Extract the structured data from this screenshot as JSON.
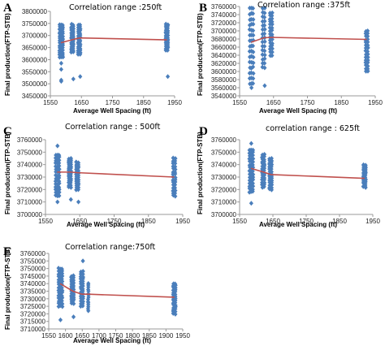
{
  "colors": {
    "points": "#4a7ebb",
    "trend": "#c0504d",
    "axis": "#999999"
  },
  "chart_data": [
    {
      "type": "scatter",
      "panel_label": "A",
      "title": "Correlation range :250ft",
      "xlabel": "Average Well Spacing (ft)",
      "ylabel": "Final production(FTP-STB)",
      "xlim": [
        1550,
        1950
      ],
      "ylim": [
        3450000,
        3800000
      ],
      "xticks": [
        "1550",
        "1650",
        "1750",
        "1850",
        "1950"
      ],
      "yticks": [
        "3450000",
        "3500000",
        "3550000",
        "3600000",
        "3650000",
        "3700000",
        "3750000",
        "3800000"
      ],
      "x_tick_values": [
        1550,
        1650,
        1750,
        1850,
        1950
      ],
      "y_tick_values": [
        3450000,
        3500000,
        3550000,
        3600000,
        3650000,
        3700000,
        3750000,
        3800000
      ],
      "scatter_groups": [
        {
          "x": [
            1580,
            1585,
            1590
          ],
          "y_range": [
            3610000,
            3745000
          ],
          "outliers": [
            3510000,
            3515000,
            3560000,
            3585000
          ]
        },
        {
          "x": [
            1618,
            1624
          ],
          "y_range": [
            3630000,
            3745000
          ],
          "outliers": [
            3520000
          ]
        },
        {
          "x": [
            1640,
            1646
          ],
          "y_range": [
            3620000,
            3745000
          ],
          "outliers": [
            3530000
          ]
        },
        {
          "x": [
            1922,
            1928
          ],
          "y_range": [
            3640000,
            3745000
          ],
          "outliers": [
            3530000
          ]
        }
      ],
      "trend_line": {
        "x": [
          1584,
          1622,
          1644,
          1925
        ],
        "y": [
          3670000,
          3683000,
          3690000,
          3682000
        ]
      }
    },
    {
      "type": "scatter",
      "panel_label": "B",
      "title": "Correlation range :375ft",
      "xlabel": "Average Well Spacing (ft)",
      "ylabel": "Final production(FTP-STB)",
      "xlim": [
        1550,
        1950
      ],
      "ylim": [
        3540000,
        3760000
      ],
      "xticks": [
        "1550",
        "1650",
        "1750",
        "1850",
        "1950"
      ],
      "yticks": [
        "3540000",
        "3560000",
        "3580000",
        "3600000",
        "3620000",
        "3640000",
        "3660000",
        "3680000",
        "3700000",
        "3720000",
        "3740000",
        "3760000"
      ],
      "x_tick_values": [
        1550,
        1650,
        1750,
        1850,
        1950
      ],
      "y_tick_values": [
        3540000,
        3560000,
        3580000,
        3600000,
        3620000,
        3640000,
        3660000,
        3680000,
        3700000,
        3720000,
        3740000,
        3760000
      ],
      "scatter_groups": [
        {
          "x": [
            1580,
            1585,
            1590
          ],
          "y_range": [
            3570000,
            3755000
          ],
          "outliers": [
            3560000
          ]
        },
        {
          "x": [
            1618,
            1624
          ],
          "y_range": [
            3610000,
            3755000
          ],
          "outliers": [
            3565000
          ]
        },
        {
          "x": [
            1640,
            1646
          ],
          "y_range": [
            3640000,
            3745000
          ],
          "outliers": []
        },
        {
          "x": [
            1922,
            1928
          ],
          "y_range": [
            3600000,
            3700000
          ],
          "outliers": []
        }
      ],
      "trend_line": {
        "x": [
          1584,
          1622,
          1644,
          1925
        ],
        "y": [
          3672000,
          3683000,
          3684000,
          3679000
        ]
      }
    },
    {
      "type": "scatter",
      "panel_label": "C",
      "title": "Correlation range : 500ft",
      "xlabel": "Average Well Spacing (ft)",
      "ylabel": "Final production(FTP-STB)",
      "xlim": [
        1550,
        1950
      ],
      "ylim": [
        3700000,
        3760000
      ],
      "xticks": [
        "1550",
        "1650",
        "1750",
        "1850",
        "1950"
      ],
      "yticks": [
        "3700000",
        "3710000",
        "3720000",
        "3730000",
        "3740000",
        "3750000",
        "3760000"
      ],
      "x_tick_values": [
        1550,
        1650,
        1750,
        1850,
        1950
      ],
      "y_tick_values": [
        3700000,
        3710000,
        3720000,
        3730000,
        3740000,
        3750000,
        3760000
      ],
      "scatter_groups": [
        {
          "x": [
            1580,
            1585,
            1590
          ],
          "y_range": [
            3715000,
            3748000
          ],
          "outliers": [
            3710000,
            3755000
          ]
        },
        {
          "x": [
            1618,
            1624
          ],
          "y_range": [
            3722000,
            3745000
          ],
          "outliers": [
            3712000
          ]
        },
        {
          "x": [
            1640,
            1646
          ],
          "y_range": [
            3720000,
            3742000
          ],
          "outliers": [
            3710000
          ]
        },
        {
          "x": [
            1922,
            1928
          ],
          "y_range": [
            3715000,
            3745000
          ],
          "outliers": []
        }
      ],
      "trend_line": {
        "x": [
          1584,
          1622,
          1644,
          1925
        ],
        "y": [
          3734000,
          3734000,
          3733500,
          3730000
        ]
      }
    },
    {
      "type": "scatter",
      "panel_label": "D",
      "title": "correlation range : 625ft",
      "xlabel": "Average Well Spacing (ft)",
      "ylabel": "Final production(FTP-STB)",
      "xlim": [
        1550,
        1950
      ],
      "ylim": [
        3700000,
        3760000
      ],
      "xticks": [
        "1550",
        "1650",
        "1750",
        "1850",
        "1950"
      ],
      "yticks": [
        "3700000",
        "3710000",
        "3720000",
        "3730000",
        "3740000",
        "3750000",
        "3760000"
      ],
      "x_tick_values": [
        1550,
        1650,
        1750,
        1850,
        1950
      ],
      "y_tick_values": [
        3700000,
        3710000,
        3720000,
        3730000,
        3740000,
        3750000,
        3760000
      ],
      "scatter_groups": [
        {
          "x": [
            1580,
            1585,
            1590
          ],
          "y_range": [
            3718000,
            3752000
          ],
          "outliers": [
            3709000,
            3757000
          ]
        },
        {
          "x": [
            1618,
            1624
          ],
          "y_range": [
            3722000,
            3748000
          ],
          "outliers": []
        },
        {
          "x": [
            1640,
            1646
          ],
          "y_range": [
            3720000,
            3745000
          ],
          "outliers": []
        },
        {
          "x": [
            1922,
            1928
          ],
          "y_range": [
            3722000,
            3740000
          ],
          "outliers": []
        }
      ],
      "trend_line": {
        "x": [
          1584,
          1622,
          1644,
          1925
        ],
        "y": [
          3737000,
          3734000,
          3732000,
          3729000
        ]
      }
    },
    {
      "type": "scatter",
      "panel_label": "E",
      "title": "Correlation range:750ft",
      "xlabel": "Average Well Spacing (ft)",
      "ylabel": "Final production(FTP-STB)",
      "xlim": [
        1550,
        1950
      ],
      "ylim": [
        3710000,
        3760000
      ],
      "xticks": [
        "1550",
        "1600",
        "1650",
        "1700",
        "1750",
        "1800",
        "1850",
        "1900",
        "1950"
      ],
      "yticks": [
        "3710000",
        "3715000",
        "3720000",
        "3725000",
        "3730000",
        "3735000",
        "3740000",
        "3745000",
        "3750000",
        "3755000",
        "3760000"
      ],
      "x_tick_values": [
        1550,
        1600,
        1650,
        1700,
        1750,
        1800,
        1850,
        1900,
        1950
      ],
      "y_tick_values": [
        3710000,
        3715000,
        3720000,
        3725000,
        3730000,
        3735000,
        3740000,
        3745000,
        3750000,
        3755000,
        3760000
      ],
      "scatter_groups": [
        {
          "x": [
            1580,
            1585,
            1590
          ],
          "y_range": [
            3725000,
            3750000
          ],
          "outliers": [
            3716000
          ]
        },
        {
          "x": [
            1618,
            1624
          ],
          "y_range": [
            3727000,
            3745000
          ],
          "outliers": [
            3718000
          ]
        },
        {
          "x": [
            1646,
            1652
          ],
          "y_range": [
            3725000,
            3748000
          ],
          "outliers": [
            3755000
          ]
        },
        {
          "x": [
            1668
          ],
          "y_range": [
            3722000,
            3740000
          ],
          "outliers": []
        },
        {
          "x": [
            1922,
            1928
          ],
          "y_range": [
            3720000,
            3740000
          ],
          "outliers": []
        }
      ],
      "trend_line": {
        "x": [
          1584,
          1622,
          1649,
          1668,
          1925
        ],
        "y": [
          3740000,
          3735000,
          3733000,
          3733000,
          3731000
        ]
      }
    }
  ]
}
